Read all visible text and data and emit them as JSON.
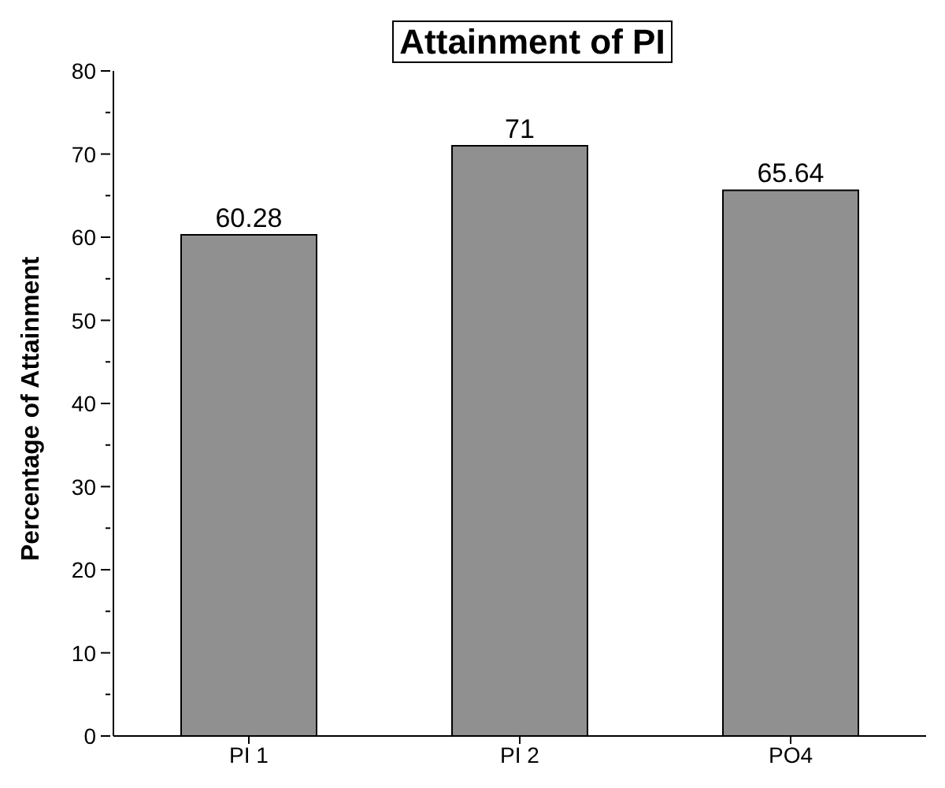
{
  "chart_data": {
    "type": "bar",
    "title": "Attainment of PI",
    "ylabel": "Percentage of Attainment",
    "categories": [
      "PI 1",
      "PI 2",
      "PO4"
    ],
    "values": [
      60.28,
      71,
      65.64
    ],
    "color": "#909090",
    "ylim": [
      0,
      80
    ],
    "yticks": [
      0,
      {
        "value": 5,
        "label": null
      },
      10,
      {
        "value": 15,
        "label": null
      },
      20,
      {
        "value": 25,
        "label": null
      },
      30,
      {
        "value": 35,
        "label": null
      },
      40,
      {
        "value": 45,
        "label": null
      },
      50,
      {
        "value": 55,
        "label": null
      },
      60,
      {
        "value": 65,
        "label": null
      },
      70,
      {
        "value": 75,
        "label": null
      },
      80
    ],
    "data_labels": true,
    "grid": false,
    "legend": false
  }
}
